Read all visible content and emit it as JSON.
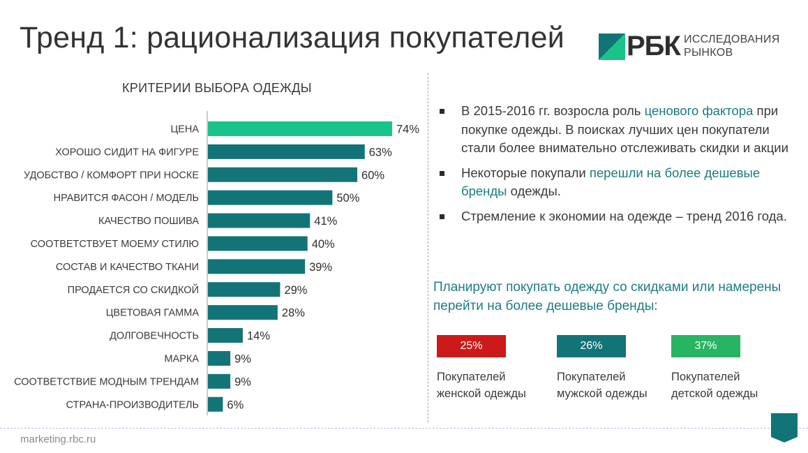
{
  "title": "Тренд 1: рационализация покупателей",
  "logo": {
    "brand": "РБК",
    "line1": "ИССЛЕДОВАНИЯ",
    "line2": "РЫНКОВ"
  },
  "colors": {
    "teal": "#137477",
    "green": "#19c489",
    "red": "#cc1a1a",
    "bright_green": "#28b463",
    "highlight": "#1b7a7c"
  },
  "chart_data": {
    "type": "bar",
    "orientation": "horizontal",
    "title": "КРИТЕРИИ ВЫБОРА ОДЕЖДЫ",
    "categories": [
      "ЦЕНА",
      "ХОРОШО СИДИТ НА ФИГУРЕ",
      "УДОБСТВО / КОМФОРТ ПРИ НОСКЕ",
      "НРАВИТСЯ ФАСОН / МОДЕЛЬ",
      "КАЧЕСТВО ПОШИВА",
      "СООТВЕТСТВУЕТ МОЕМУ СТИЛЮ",
      "СОСТАВ И КАЧЕСТВО ТКАНИ",
      "ПРОДАЕТСЯ СО СКИДКОЙ",
      "ЦВЕТОВАЯ ГАММА",
      "ДОЛГОВЕЧНОСТЬ",
      "МАРКА",
      "СООТВЕТСТВИЕ МОДНЫМ ТРЕНДАМ",
      "СТРАНА-ПРОИЗВОДИТЕЛЬ"
    ],
    "values": [
      74,
      63,
      60,
      50,
      41,
      40,
      39,
      29,
      28,
      14,
      9,
      9,
      6
    ],
    "value_labels": [
      "74%",
      "63%",
      "60%",
      "50%",
      "41%",
      "40%",
      "39%",
      "29%",
      "28%",
      "14%",
      "9%",
      "9%",
      "6%"
    ],
    "highlight_index": 0,
    "unit": "%",
    "xlim": [
      0,
      100
    ],
    "grid": false,
    "legend": "none"
  },
  "bullets": [
    {
      "before": "В 2015-2016 гг. возросла роль ",
      "highlight": "ценового фактора",
      "after": " при покупке одежды. В поисках лучших цен покупатели стали более внимательно отслеживать скидки и акции"
    },
    {
      "before": "Некоторые покупали ",
      "highlight": "перешли на более дешевые бренды",
      "after": " одежды."
    },
    {
      "before": "Стремление к экономии на одежде – тренд 2016 года.",
      "highlight": "",
      "after": ""
    }
  ],
  "plan_text": "Планируют покупать одежду со скидками или намерены перейти на более дешевые бренды:",
  "stats": [
    {
      "value": "25%",
      "line1": "Покупателей",
      "line2": "женской одежды",
      "color": "#cc1a1a"
    },
    {
      "value": "26%",
      "line1": "Покупателей",
      "line2": "мужской одежды",
      "color": "#137477"
    },
    {
      "value": "37%",
      "line1": "Покупателей",
      "line2": "детской одежды",
      "color": "#28b463"
    }
  ],
  "footer": "marketing.rbc.ru"
}
